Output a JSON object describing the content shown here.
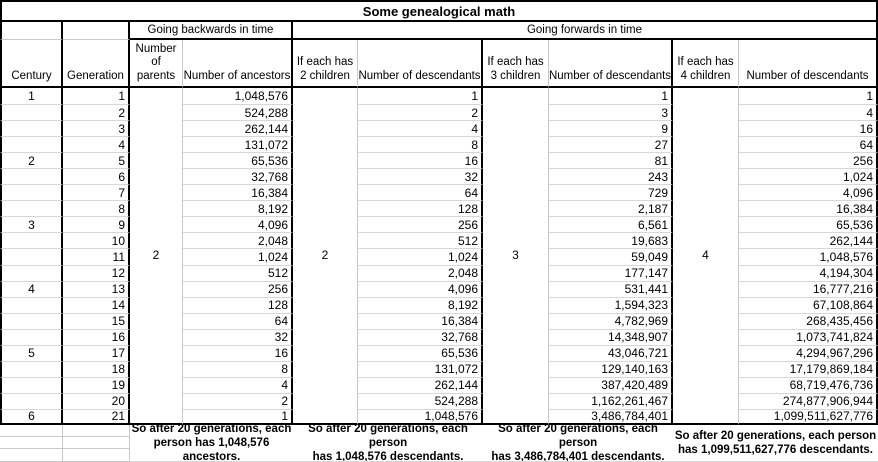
{
  "title": "Some genealogical math",
  "groups": {
    "backwards": "Going backwards in time",
    "forwards": "Going forwards in time"
  },
  "columns": {
    "century": "Century",
    "generation": "Generation",
    "parents": "Number of parents",
    "ancestors": "Number of ancestors",
    "has2": "If each has 2 children",
    "desc2": "Number of descendants",
    "has3": "If each has 3 children",
    "desc3": "Number of descendants",
    "has4": "If each has 4 children",
    "desc4": "Number of descendants"
  },
  "merged_values": {
    "parents": "2",
    "has2": "2",
    "has3": "3",
    "has4": "4"
  },
  "rows": [
    {
      "century": "1",
      "generation": "1",
      "ancestors": "1,048,576",
      "desc2": "1",
      "desc3": "1",
      "desc4": "1"
    },
    {
      "century": "",
      "generation": "2",
      "ancestors": "524,288",
      "desc2": "2",
      "desc3": "3",
      "desc4": "4"
    },
    {
      "century": "",
      "generation": "3",
      "ancestors": "262,144",
      "desc2": "4",
      "desc3": "9",
      "desc4": "16"
    },
    {
      "century": "",
      "generation": "4",
      "ancestors": "131,072",
      "desc2": "8",
      "desc3": "27",
      "desc4": "64"
    },
    {
      "century": "2",
      "generation": "5",
      "ancestors": "65,536",
      "desc2": "16",
      "desc3": "81",
      "desc4": "256"
    },
    {
      "century": "",
      "generation": "6",
      "ancestors": "32,768",
      "desc2": "32",
      "desc3": "243",
      "desc4": "1,024"
    },
    {
      "century": "",
      "generation": "7",
      "ancestors": "16,384",
      "desc2": "64",
      "desc3": "729",
      "desc4": "4,096"
    },
    {
      "century": "",
      "generation": "8",
      "ancestors": "8,192",
      "desc2": "128",
      "desc3": "2,187",
      "desc4": "16,384"
    },
    {
      "century": "3",
      "generation": "9",
      "ancestors": "4,096",
      "desc2": "256",
      "desc3": "6,561",
      "desc4": "65,536"
    },
    {
      "century": "",
      "generation": "10",
      "ancestors": "2,048",
      "desc2": "512",
      "desc3": "19,683",
      "desc4": "262,144"
    },
    {
      "century": "",
      "generation": "11",
      "ancestors": "1,024",
      "desc2": "1,024",
      "desc3": "59,049",
      "desc4": "1,048,576"
    },
    {
      "century": "",
      "generation": "12",
      "ancestors": "512",
      "desc2": "2,048",
      "desc3": "177,147",
      "desc4": "4,194,304"
    },
    {
      "century": "4",
      "generation": "13",
      "ancestors": "256",
      "desc2": "4,096",
      "desc3": "531,441",
      "desc4": "16,777,216"
    },
    {
      "century": "",
      "generation": "14",
      "ancestors": "128",
      "desc2": "8,192",
      "desc3": "1,594,323",
      "desc4": "67,108,864"
    },
    {
      "century": "",
      "generation": "15",
      "ancestors": "64",
      "desc2": "16,384",
      "desc3": "4,782,969",
      "desc4": "268,435,456"
    },
    {
      "century": "",
      "generation": "16",
      "ancestors": "32",
      "desc2": "32,768",
      "desc3": "14,348,907",
      "desc4": "1,073,741,824"
    },
    {
      "century": "5",
      "generation": "17",
      "ancestors": "16",
      "desc2": "65,536",
      "desc3": "43,046,721",
      "desc4": "4,294,967,296"
    },
    {
      "century": "",
      "generation": "18",
      "ancestors": "8",
      "desc2": "131,072",
      "desc3": "129,140,163",
      "desc4": "17,179,869,184"
    },
    {
      "century": "",
      "generation": "19",
      "ancestors": "4",
      "desc2": "262,144",
      "desc3": "387,420,489",
      "desc4": "68,719,476,736"
    },
    {
      "century": "",
      "generation": "20",
      "ancestors": "2",
      "desc2": "524,288",
      "desc3": "1,162,261,467",
      "desc4": "274,877,906,944"
    },
    {
      "century": "6",
      "generation": "21",
      "ancestors": "1",
      "desc2": "1,048,576",
      "desc3": "3,486,784,401",
      "desc4": "1,099,511,627,776"
    }
  ],
  "footer": {
    "ancestors": {
      "line1": "So after 20 generations, each",
      "line2": "person has 1,048,576 ancestors."
    },
    "desc2": {
      "line1": "So after 20 generations, each person",
      "line2": "has 1,048,576 descendants."
    },
    "desc3": {
      "line1": "So after 20 generations, each person",
      "line2": "has 3,486,784,401 descendants."
    },
    "desc4": {
      "line1": "So after 20 generations, each person",
      "line2": "has 1,099,511,627,776 descendants."
    }
  },
  "colors": {
    "border": "#000000",
    "gridline": "#c8c8c8",
    "background": "#ffffff",
    "text": "#000000"
  }
}
